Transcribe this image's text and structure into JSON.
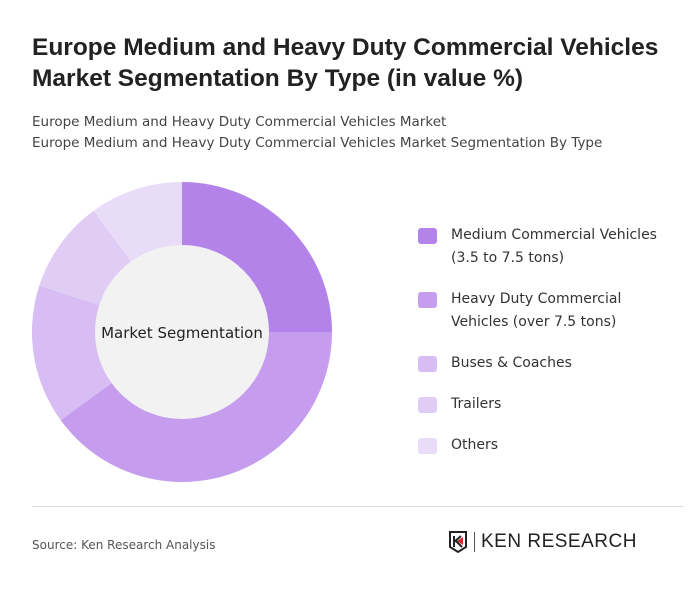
{
  "title": "Europe Medium and Heavy Duty Commercial Vehicles Market Segmentation By Type (in value %)",
  "subtitle_1": "Europe Medium and Heavy Duty Commercial Vehicles Market",
  "subtitle_2": "Europe Medium and Heavy Duty Commercial Vehicles Market Segmentation By Type",
  "source": "Source: Ken Research Analysis",
  "logo_text": "KEN RESEARCH",
  "chart_data": {
    "type": "pie",
    "donut": true,
    "center_label": "Market Segmentation",
    "legend_position": "right",
    "categories": [
      "Medium Commercial Vehicles (3.5 to 7.5 tons)",
      "Heavy Duty Commercial Vehicles (over 7.5 tons)",
      "Buses & Coaches",
      "Trailers",
      "Others"
    ],
    "values": [
      25,
      40,
      15,
      10,
      10
    ],
    "colors": [
      "#b383ea",
      "#c59cee",
      "#d7bdf3",
      "#e0cdf5",
      "#e8dcf8"
    ]
  }
}
